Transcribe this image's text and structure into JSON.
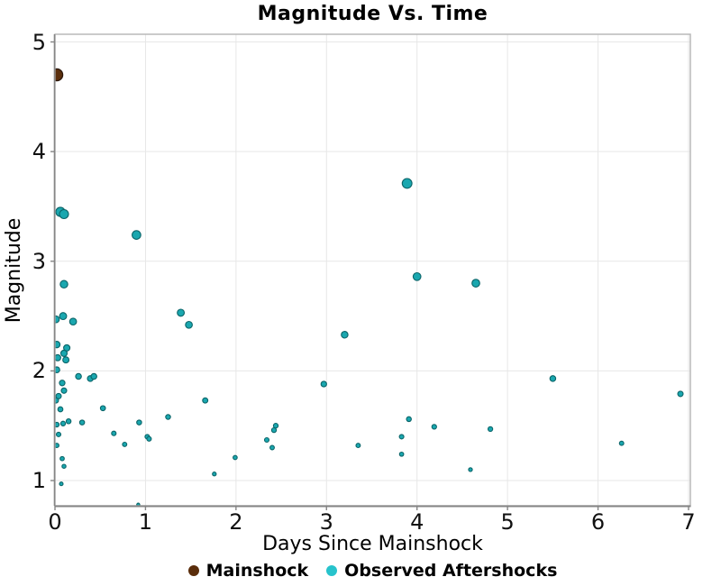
{
  "title": "Magnitude Vs. Time",
  "axes": {
    "x": {
      "label": "Days Since Mainshock",
      "ticks": [
        0,
        1,
        2,
        3,
        4,
        5,
        6,
        7
      ]
    },
    "y": {
      "label": "Magnitude",
      "ticks": [
        1,
        2,
        3,
        4,
        5
      ]
    }
  },
  "legend": [
    {
      "id": "mainshock",
      "label": "Mainshock",
      "color": "#5A2D0B"
    },
    {
      "id": "observed-aftershocks",
      "label": "Observed Aftershocks",
      "color": "#27C3CC"
    }
  ],
  "colors": {
    "mainshock_fill": "#5B2F0D",
    "mainshock_stroke": "#2A160A",
    "aftershock_fill": "#1AA7AF",
    "aftershock_stroke": "#0B6468",
    "gridline": "#e7e7e7",
    "panel_border": "#b4b4b4",
    "axis_line": "#858585",
    "text": "#000000"
  },
  "chart_data": {
    "type": "scatter",
    "title": "Magnitude Vs. Time",
    "xlabel": "Days Since Mainshock",
    "ylabel": "Magnitude",
    "xlim": [
      0,
      7.02
    ],
    "ylim": [
      0.77,
      5.07
    ],
    "x_ticks": [
      0,
      1,
      2,
      3,
      4,
      5,
      6,
      7
    ],
    "y_ticks": [
      1,
      2,
      3,
      4,
      5
    ],
    "grid": true,
    "legend_position": "bottom",
    "size_note": "marker size scales with magnitude",
    "series": [
      {
        "name": "Mainshock",
        "color": "#5B2F0D",
        "points": [
          [
            0.02,
            4.7
          ]
        ]
      },
      {
        "name": "Observed Aftershocks",
        "color": "#1AA7AF",
        "points": [
          [
            0.06,
            3.45
          ],
          [
            0.1,
            3.43
          ],
          [
            0.1,
            2.79
          ],
          [
            0.01,
            2.47
          ],
          [
            0.09,
            2.5
          ],
          [
            0.2,
            2.45
          ],
          [
            0.02,
            2.24
          ],
          [
            0.13,
            2.21
          ],
          [
            0.1,
            2.16
          ],
          [
            0.03,
            2.12
          ],
          [
            0.12,
            2.1
          ],
          [
            0.02,
            2.01
          ],
          [
            0.26,
            1.95
          ],
          [
            0.39,
            1.93
          ],
          [
            0.43,
            1.95
          ],
          [
            0.08,
            1.89
          ],
          [
            0.1,
            1.82
          ],
          [
            0.04,
            1.77
          ],
          [
            0.01,
            1.73
          ],
          [
            0.06,
            1.65
          ],
          [
            0.53,
            1.66
          ],
          [
            0.02,
            1.51
          ],
          [
            0.09,
            1.52
          ],
          [
            0.15,
            1.54
          ],
          [
            0.3,
            1.53
          ],
          [
            0.04,
            1.42
          ],
          [
            0.65,
            1.43
          ],
          [
            0.02,
            1.32
          ],
          [
            0.77,
            1.33
          ],
          [
            0.08,
            1.2
          ],
          [
            0.1,
            1.13
          ],
          [
            0.07,
            0.97
          ],
          [
            0.9,
            3.24
          ],
          [
            0.93,
            1.53
          ],
          [
            0.92,
            0.78
          ],
          [
            1.02,
            1.4
          ],
          [
            1.04,
            1.38
          ],
          [
            1.25,
            1.58
          ],
          [
            1.39,
            2.53
          ],
          [
            1.48,
            2.42
          ],
          [
            1.66,
            1.73
          ],
          [
            1.76,
            1.06
          ],
          [
            1.99,
            1.21
          ],
          [
            2.34,
            1.37
          ],
          [
            2.4,
            1.3
          ],
          [
            2.42,
            1.46
          ],
          [
            2.44,
            1.5
          ],
          [
            2.97,
            1.88
          ],
          [
            3.2,
            2.33
          ],
          [
            3.35,
            1.32
          ],
          [
            3.83,
            1.4
          ],
          [
            3.83,
            1.24
          ],
          [
            3.89,
            3.71
          ],
          [
            3.91,
            1.56
          ],
          [
            4.0,
            2.86
          ],
          [
            4.19,
            1.49
          ],
          [
            4.59,
            1.1
          ],
          [
            4.65,
            2.8
          ],
          [
            4.81,
            1.47
          ],
          [
            5.5,
            1.93
          ],
          [
            6.26,
            1.34
          ],
          [
            6.91,
            1.79
          ]
        ]
      }
    ]
  }
}
